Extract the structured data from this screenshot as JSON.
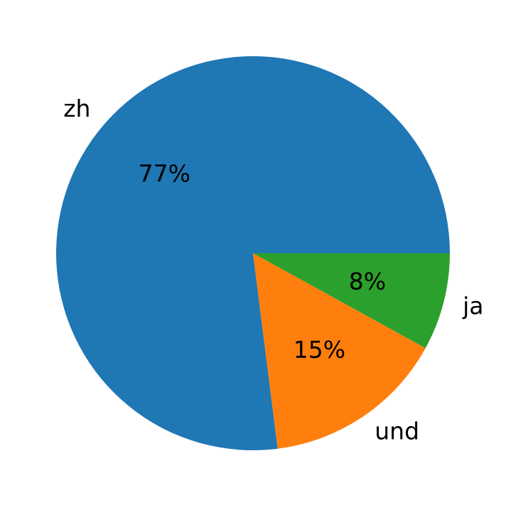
{
  "chart_data": {
    "type": "pie",
    "categories": [
      "zh",
      "und",
      "ja"
    ],
    "values": [
      77,
      15,
      8
    ],
    "value_labels": [
      "77%",
      "15%",
      "8%"
    ],
    "colors": [
      "#1f77b4",
      "#ff7f0e",
      "#2ca02c"
    ]
  }
}
